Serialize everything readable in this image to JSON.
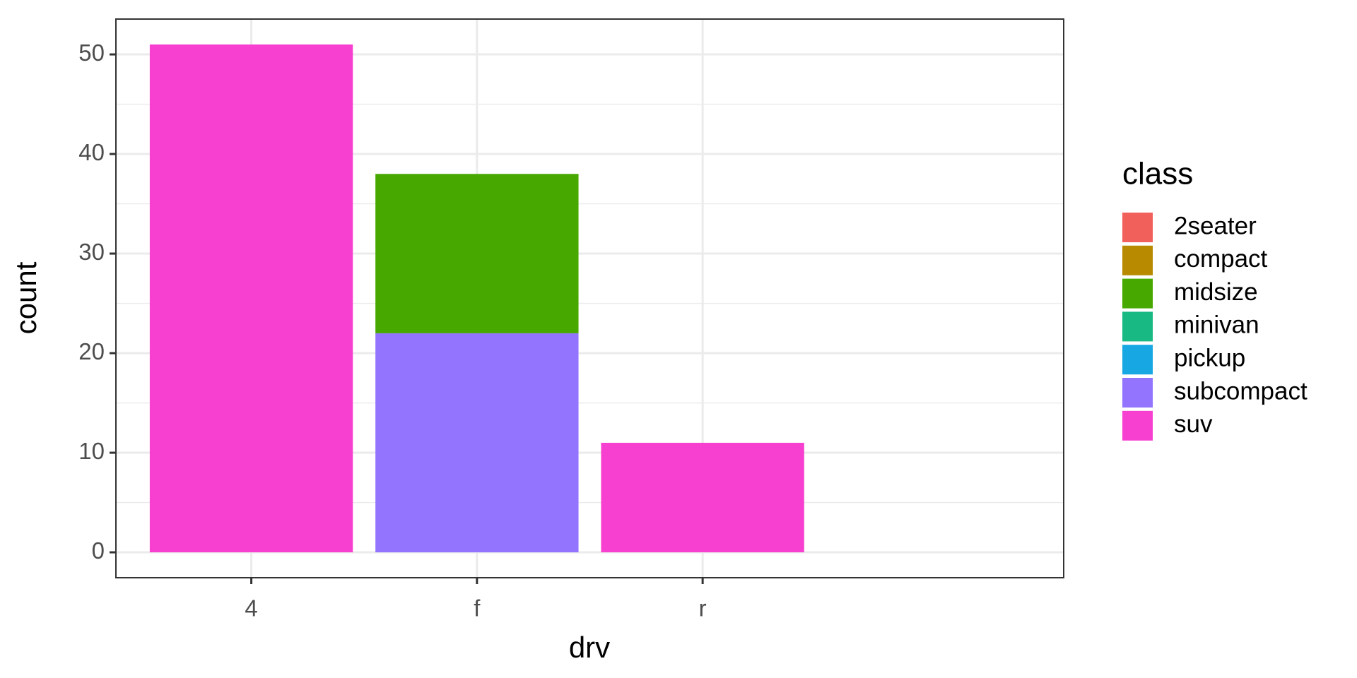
{
  "chart_data": {
    "type": "stacked_bar",
    "x_label": "drv",
    "y_label": "count",
    "legend_title": "class",
    "legend_position": "right",
    "categories": [
      "4",
      "f",
      "r"
    ],
    "series": [
      {
        "name": "2seater",
        "color": "#F2605B",
        "values": [
          0,
          0,
          0
        ]
      },
      {
        "name": "compact",
        "color": "#B78A00",
        "values": [
          0,
          0,
          0
        ]
      },
      {
        "name": "midsize",
        "color": "#47A800",
        "values": [
          0,
          16,
          0
        ]
      },
      {
        "name": "minivan",
        "color": "#18B983",
        "values": [
          0,
          0,
          0
        ]
      },
      {
        "name": "pickup",
        "color": "#17A7E3",
        "values": [
          0,
          0,
          0
        ]
      },
      {
        "name": "subcompact",
        "color": "#9374FF",
        "values": [
          0,
          22,
          0
        ]
      },
      {
        "name": "suv",
        "color": "#F740D0",
        "values": [
          51,
          0,
          11
        ]
      }
    ],
    "ylim": [
      -2.55,
      53.55
    ],
    "yticks": [
      0,
      10,
      20,
      30,
      40,
      50
    ],
    "y_minor_ticks": [
      5,
      15,
      25,
      35,
      45
    ],
    "grid": true
  }
}
